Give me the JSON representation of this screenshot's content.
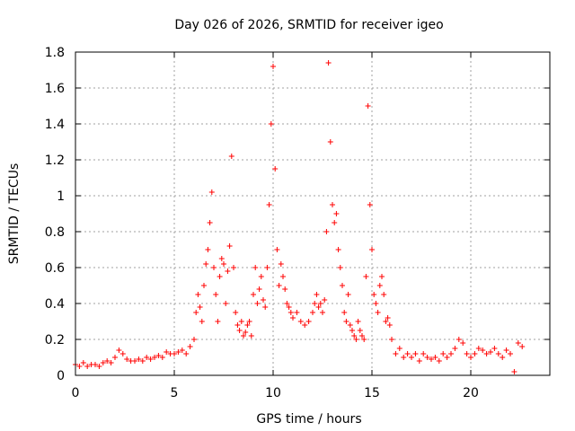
{
  "chart_data": {
    "type": "scatter",
    "title": "Day 026 of 2026, SRMTID for receiver igeo",
    "xlabel": "GPS time / hours",
    "ylabel": "SRMTID / TECUs",
    "xlim": [
      0,
      24
    ],
    "ylim": [
      0,
      1.8
    ],
    "x_ticks": [
      0,
      5,
      10,
      15,
      20
    ],
    "x_tick_labels": [
      "0",
      "5",
      "10",
      "15",
      "20"
    ],
    "y_ticks": [
      0,
      0.2,
      0.4,
      0.6,
      0.8,
      1,
      1.2,
      1.4,
      1.6,
      1.8
    ],
    "y_tick_labels": [
      "0",
      "0.2",
      "0.4",
      "0.6",
      "0.8",
      "1",
      "1.2",
      "1.4",
      "1.6",
      "1.8"
    ],
    "grid": true,
    "marker": "+",
    "color": "#ff0000",
    "series": [
      {
        "name": "SRMTID",
        "x": [
          0.0,
          0.2,
          0.4,
          0.6,
          0.8,
          1.0,
          1.2,
          1.4,
          1.6,
          1.8,
          2.0,
          2.2,
          2.4,
          2.6,
          2.8,
          3.0,
          3.2,
          3.4,
          3.6,
          3.8,
          4.0,
          4.2,
          4.4,
          4.6,
          4.8,
          5.0,
          5.2,
          5.4,
          5.6,
          5.8,
          6.0,
          6.1,
          6.2,
          6.3,
          6.4,
          6.5,
          6.6,
          6.7,
          6.8,
          6.9,
          7.0,
          7.1,
          7.2,
          7.3,
          7.4,
          7.5,
          7.6,
          7.7,
          7.8,
          7.9,
          8.0,
          8.1,
          8.2,
          8.3,
          8.4,
          8.5,
          8.6,
          8.7,
          8.8,
          8.9,
          9.0,
          9.1,
          9.2,
          9.3,
          9.4,
          9.5,
          9.6,
          9.7,
          9.8,
          9.9,
          10.0,
          10.1,
          10.2,
          10.3,
          10.4,
          10.5,
          10.6,
          10.7,
          10.8,
          10.9,
          11.0,
          11.2,
          11.4,
          11.6,
          11.8,
          12.0,
          12.1,
          12.2,
          12.3,
          12.4,
          12.5,
          12.6,
          12.7,
          12.8,
          12.9,
          13.0,
          13.1,
          13.2,
          13.3,
          13.4,
          13.5,
          13.6,
          13.7,
          13.8,
          13.9,
          14.0,
          14.1,
          14.2,
          14.3,
          14.4,
          14.5,
          14.6,
          14.7,
          14.8,
          14.9,
          15.0,
          15.1,
          15.2,
          15.3,
          15.4,
          15.5,
          15.6,
          15.7,
          15.8,
          15.9,
          16.0,
          16.2,
          16.4,
          16.6,
          16.8,
          17.0,
          17.2,
          17.4,
          17.6,
          17.8,
          18.0,
          18.2,
          18.4,
          18.6,
          18.8,
          19.0,
          19.2,
          19.4,
          19.6,
          19.8,
          20.0,
          20.2,
          20.4,
          20.6,
          20.8,
          21.0,
          21.2,
          21.4,
          21.6,
          21.8,
          22.0,
          22.2,
          22.4,
          22.6
        ],
        "y": [
          0.06,
          0.05,
          0.07,
          0.05,
          0.06,
          0.06,
          0.05,
          0.07,
          0.08,
          0.07,
          0.1,
          0.14,
          0.12,
          0.09,
          0.08,
          0.08,
          0.09,
          0.08,
          0.1,
          0.09,
          0.1,
          0.11,
          0.1,
          0.13,
          0.12,
          0.12,
          0.13,
          0.14,
          0.12,
          0.16,
          0.2,
          0.35,
          0.45,
          0.38,
          0.3,
          0.5,
          0.62,
          0.7,
          0.85,
          1.02,
          0.6,
          0.45,
          0.3,
          0.55,
          0.65,
          0.62,
          0.4,
          0.58,
          0.72,
          1.22,
          0.6,
          0.35,
          0.28,
          0.25,
          0.3,
          0.22,
          0.24,
          0.28,
          0.3,
          0.22,
          0.45,
          0.6,
          0.4,
          0.48,
          0.55,
          0.42,
          0.38,
          0.6,
          0.95,
          1.4,
          1.72,
          1.15,
          0.7,
          0.5,
          0.62,
          0.55,
          0.48,
          0.4,
          0.38,
          0.35,
          0.32,
          0.35,
          0.3,
          0.28,
          0.3,
          0.35,
          0.4,
          0.45,
          0.38,
          0.4,
          0.35,
          0.42,
          0.8,
          1.74,
          1.3,
          0.95,
          0.85,
          0.9,
          0.7,
          0.6,
          0.5,
          0.35,
          0.3,
          0.45,
          0.28,
          0.25,
          0.22,
          0.2,
          0.3,
          0.25,
          0.22,
          0.2,
          0.55,
          1.5,
          0.95,
          0.7,
          0.45,
          0.4,
          0.35,
          0.5,
          0.55,
          0.45,
          0.3,
          0.32,
          0.28,
          0.2,
          0.12,
          0.15,
          0.1,
          0.12,
          0.1,
          0.12,
          0.08,
          0.12,
          0.1,
          0.09,
          0.1,
          0.08,
          0.12,
          0.1,
          0.12,
          0.15,
          0.2,
          0.18,
          0.12,
          0.1,
          0.12,
          0.15,
          0.14,
          0.12,
          0.13,
          0.15,
          0.12,
          0.1,
          0.14,
          0.12,
          0.02,
          0.18,
          0.16
        ]
      }
    ]
  }
}
